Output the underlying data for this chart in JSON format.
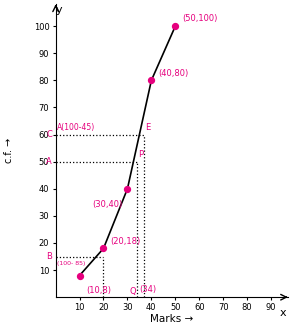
{
  "points_x": [
    10,
    20,
    30,
    40,
    50
  ],
  "points_y": [
    8,
    18,
    40,
    80,
    100
  ],
  "point_labels": [
    "(10,8)",
    "(20,18)",
    "(30,40)",
    "(40,80)",
    "(50,100)"
  ],
  "xlim": [
    0,
    97
  ],
  "ylim": [
    0,
    108
  ],
  "xticks": [
    10,
    20,
    30,
    40,
    50,
    60,
    70,
    80,
    90
  ],
  "yticks": [
    10,
    20,
    30,
    40,
    50,
    60,
    70,
    80,
    90,
    100
  ],
  "xlabel": "Marks →",
  "ylabel": "c.f. →",
  "point_color": "#e6007e",
  "line_color": "#000000",
  "annotation_color": "#e6007e",
  "background": "#ffffff",
  "median_y": 50,
  "median_x": 34,
  "upper_y": 60,
  "upper_x": 37,
  "lower_y": 15,
  "lower_x": 20,
  "title_y": "y",
  "title_x": "x"
}
